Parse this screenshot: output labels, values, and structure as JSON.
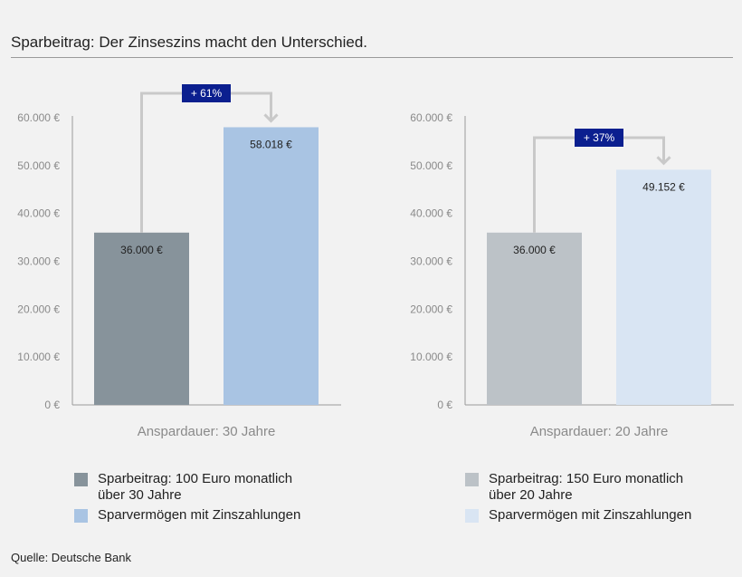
{
  "title": "Sparbeitrag: Der Zinseszins macht den Unterschied.",
  "source": "Quelle: Deutsche Bank",
  "chart_data": [
    {
      "type": "bar",
      "xlabel": "Anspardauer: 30 Jahre",
      "ylim": [
        0,
        60000
      ],
      "yticks": [
        "0 €",
        "10.000 €",
        "20.000 €",
        "30.000 €",
        "40.000 €",
        "50.000 €",
        "60.000 €"
      ],
      "categories": [
        "Sparbeitrag: 100 Euro monatlich über 30 Jahre",
        "Sparvermögen mit Zinszahlungen"
      ],
      "values": [
        36000,
        58018
      ],
      "value_labels": [
        "36.000 €",
        "58.018 €"
      ],
      "colors": [
        "#87939b",
        "#a9c4e3"
      ],
      "increase_label": "+ 61%"
    },
    {
      "type": "bar",
      "xlabel": "Anspardauer: 20 Jahre",
      "ylim": [
        0,
        60000
      ],
      "yticks": [
        "0 €",
        "10.000 €",
        "20.000 €",
        "30.000 €",
        "40.000 €",
        "50.000 €",
        "60.000 €"
      ],
      "categories": [
        "Sparbeitrag: 150 Euro monatlich über 20 Jahre",
        "Sparvermögen mit Zinszahlungen"
      ],
      "values": [
        36000,
        49152
      ],
      "value_labels": [
        "36.000 €",
        "49.152 €"
      ],
      "colors": [
        "#bcc2c7",
        "#d9e5f3"
      ],
      "increase_label": "+ 37%"
    }
  ],
  "legends": [
    [
      {
        "line1": "Sparbeitrag: 100 Euro monatlich",
        "line2": "über 30 Jahre",
        "color": "#87939b"
      },
      {
        "line1": "Sparvermögen mit Zinszahlungen",
        "line2": "",
        "color": "#a9c4e3"
      }
    ],
    [
      {
        "line1": "Sparbeitrag: 150 Euro monatlich",
        "line2": "über 20 Jahre",
        "color": "#bcc2c7"
      },
      {
        "line1": "Sparvermögen mit Zinszahlungen",
        "line2": "",
        "color": "#d9e5f3"
      }
    ]
  ],
  "colors": {
    "badge": "#0b1f8f",
    "axis": "#9a9a9a",
    "connector": "#c9c9c9"
  }
}
